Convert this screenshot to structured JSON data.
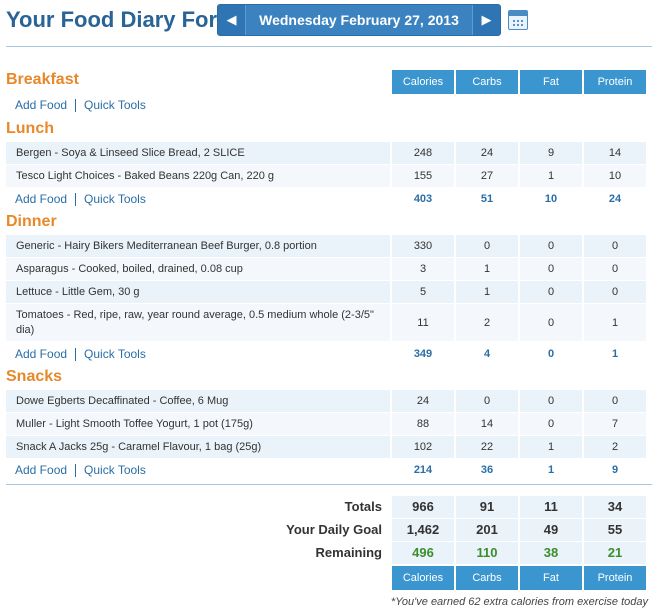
{
  "header": {
    "title": "Your Food Diary For:",
    "date": "Wednesday February 27, 2013",
    "prev_icon": "◀",
    "next_icon": "▶",
    "calendar_icon": "calendar-icon"
  },
  "columns": [
    "Calories",
    "Carbs",
    "Fat",
    "Protein"
  ],
  "links": {
    "add_food": "Add Food",
    "quick_tools": "Quick Tools"
  },
  "meals": {
    "breakfast": {
      "name": "Breakfast"
    },
    "lunch": {
      "name": "Lunch",
      "items": [
        {
          "desc": "Bergen - Soya & Linseed Slice Bread, 2 SLICE",
          "cal": "248",
          "carbs": "24",
          "fat": "9",
          "protein": "14"
        },
        {
          "desc": "Tesco Light Choices - Baked Beans 220g Can, 220 g",
          "cal": "155",
          "carbs": "27",
          "fat": "1",
          "protein": "10"
        }
      ],
      "totals": {
        "cal": "403",
        "carbs": "51",
        "fat": "10",
        "protein": "24"
      }
    },
    "dinner": {
      "name": "Dinner",
      "items": [
        {
          "desc": "Generic - Hairy Bikers Mediterranean Beef Burger, 0.8 portion",
          "cal": "330",
          "carbs": "0",
          "fat": "0",
          "protein": "0"
        },
        {
          "desc": "Asparagus - Cooked, boiled, drained, 0.08 cup",
          "cal": "3",
          "carbs": "1",
          "fat": "0",
          "protein": "0"
        },
        {
          "desc": "Lettuce - Little Gem, 30 g",
          "cal": "5",
          "carbs": "1",
          "fat": "0",
          "protein": "0"
        },
        {
          "desc": "Tomatoes - Red, ripe, raw, year round average, 0.5 medium whole (2-3/5\" dia)",
          "cal": "11",
          "carbs": "2",
          "fat": "0",
          "protein": "1"
        }
      ],
      "totals": {
        "cal": "349",
        "carbs": "4",
        "fat": "0",
        "protein": "1"
      }
    },
    "snacks": {
      "name": "Snacks",
      "items": [
        {
          "desc": "Dowe Egberts Decaffinated - Coffee, 6 Mug",
          "cal": "24",
          "carbs": "0",
          "fat": "0",
          "protein": "0"
        },
        {
          "desc": "Muller - Light Smooth Toffee Yogurt, 1 pot (175g)",
          "cal": "88",
          "carbs": "14",
          "fat": "0",
          "protein": "7"
        },
        {
          "desc": "Snack A Jacks 25g - Caramel Flavour, 1 bag (25g)",
          "cal": "102",
          "carbs": "22",
          "fat": "1",
          "protein": "2"
        }
      ],
      "totals": {
        "cal": "214",
        "carbs": "36",
        "fat": "1",
        "protein": "9"
      }
    }
  },
  "summary": {
    "totals": {
      "label": "Totals",
      "cal": "966",
      "carbs": "91",
      "fat": "11",
      "protein": "34"
    },
    "goal": {
      "label": "Your Daily Goal",
      "cal": "1,462",
      "carbs": "201",
      "fat": "49",
      "protein": "55"
    },
    "remaining": {
      "label": "Remaining",
      "cal": "496",
      "carbs": "110",
      "fat": "38",
      "protein": "21"
    }
  },
  "footnote": "*You've earned 62 extra calories from exercise today",
  "colors": {
    "title": "#2a6496",
    "section": "#e8882a",
    "header_cell": "#3b96cf",
    "remaining": "#3a8f2c"
  }
}
